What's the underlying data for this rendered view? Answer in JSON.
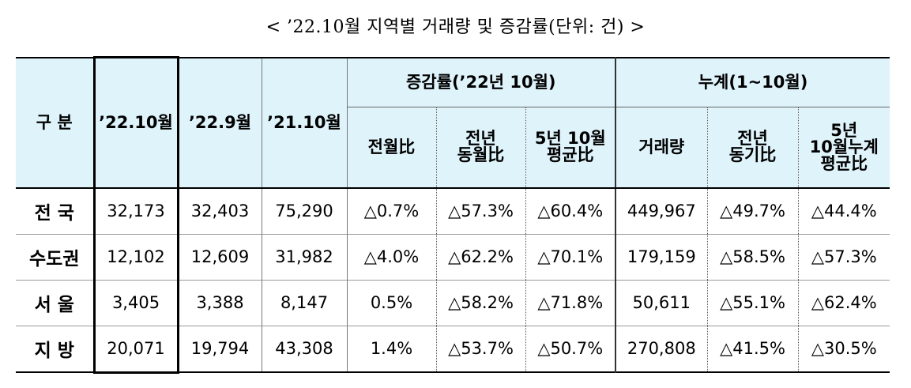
{
  "caption": "< ’22.10월 지역별 거래량 및 증감률(단위: 건) >",
  "headers": {
    "category": "구 분",
    "col1": "’22.10월",
    "col2": "’22.9월",
    "col3": "’21.10월",
    "group1": "증감률(’22년 10월)",
    "group1_sub": [
      "전월比",
      "전년\n동월比",
      "5년 10월\n평균比"
    ],
    "group2": "누계(1~10월)",
    "group2_sub": [
      "거래량",
      "전년\n동기比",
      "5년\n10월누계\n평균比"
    ]
  },
  "rows": [
    {
      "label": "전 국",
      "cells": [
        "32,173",
        "32,403",
        "75,290",
        "△0.7%",
        "△57.3%",
        "△60.4%",
        "449,967",
        "△49.7%",
        "△44.4%"
      ]
    },
    {
      "label": "수도권",
      "cells": [
        "12,102",
        "12,609",
        "31,982",
        "△4.0%",
        "△62.2%",
        "△70.1%",
        "179,159",
        "△58.5%",
        "△57.3%"
      ]
    },
    {
      "label": "서 울",
      "cells": [
        "3,405",
        "3,388",
        "8,147",
        "0.5%",
        "△58.2%",
        "△71.8%",
        "50,611",
        "△55.1%",
        "△62.4%"
      ]
    },
    {
      "label": "지 방",
      "cells": [
        "20,071",
        "19,794",
        "43,308",
        "1.4%",
        "△53.7%",
        "△50.7%",
        "270,808",
        "△41.5%",
        "△30.5%"
      ]
    }
  ]
}
